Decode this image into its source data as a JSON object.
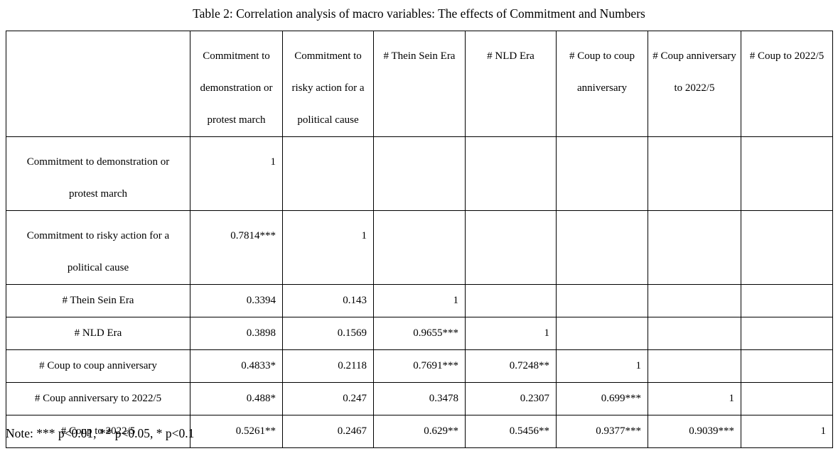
{
  "title": "Table 2: Correlation analysis of macro variables: The effects of Commitment and Numbers",
  "columns": [
    "",
    "Commitment to demonstration or protest march",
    "Commitment to risky action for a political cause",
    "# Thein Sein Era",
    "# NLD Era",
    "# Coup to coup anniversary",
    "# Coup anniversary to 2022/5",
    "# Coup to 2022/5"
  ],
  "rows": [
    {
      "label": "Commitment to demonstration or protest march",
      "cells": [
        "1",
        "",
        "",
        "",
        "",
        "",
        ""
      ]
    },
    {
      "label": "Commitment to risky action for a political cause",
      "cells": [
        "0.7814***",
        "1",
        "",
        "",
        "",
        "",
        ""
      ]
    },
    {
      "label": "# Thein Sein Era",
      "cells": [
        "0.3394",
        "0.143",
        "1",
        "",
        "",
        "",
        ""
      ]
    },
    {
      "label": "# NLD Era",
      "cells": [
        "0.3898",
        "0.1569",
        "0.9655***",
        "1",
        "",
        "",
        ""
      ]
    },
    {
      "label": "# Coup to coup anniversary",
      "cells": [
        "0.4833*",
        "0.2118",
        "0.7691***",
        "0.7248**",
        "1",
        "",
        ""
      ]
    },
    {
      "label": "# Coup anniversary to 2022/5",
      "cells": [
        "0.488*",
        "0.247",
        "0.3478",
        "0.2307",
        "0.699***",
        "1",
        ""
      ]
    },
    {
      "label": "# Coup to 2022/5",
      "cells": [
        "0.5261**",
        "0.2467",
        "0.629**",
        "0.5456**",
        "0.9377***",
        "0.9039***",
        "1"
      ]
    }
  ],
  "note": "Note: *** p<0.01, ** p<0.05, * p<0.1"
}
